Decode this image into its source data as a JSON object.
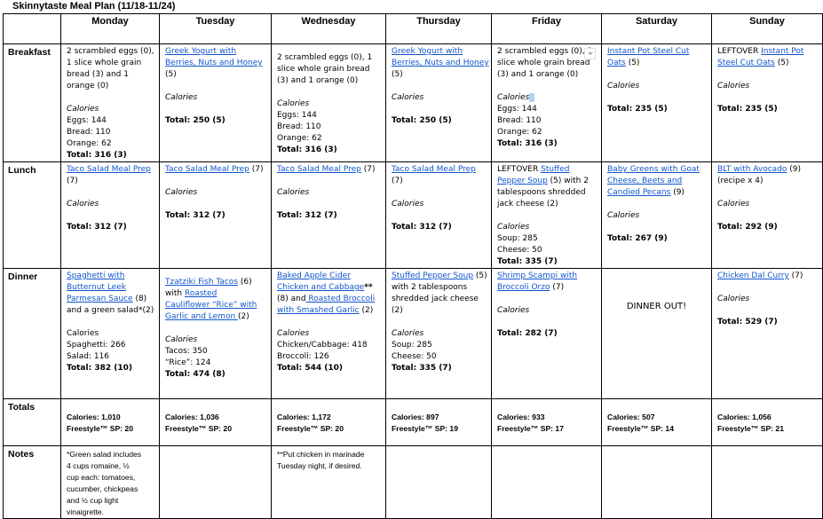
{
  "title": "Skinnytaste Meal Plan (11/18-11/24)",
  "days": [
    "Monday",
    "Tuesday",
    "Wednesday",
    "Thursday",
    "Friday",
    "Saturday",
    "Sunday"
  ],
  "colors": {
    "link": "#1155cc",
    "border": "#000000"
  },
  "rows": [
    {
      "label": "Breakfast",
      "cls": "bf",
      "cells": [
        {
          "lines": [
            [
              "2 scrambled eggs (0),"
            ],
            [
              "1 slice whole grain"
            ],
            [
              "bread (3) and 1"
            ],
            [
              "orange (0)"
            ],
            [],
            [
              {
                "t": "Calories",
                "s": "i"
              }
            ],
            [
              "Eggs: 144"
            ],
            [
              "Bread: 110"
            ],
            [
              "Orange: 62"
            ],
            [
              {
                "t": "Total: 316 (3)",
                "s": "b"
              }
            ]
          ]
        },
        {
          "lines": [
            [
              {
                "t": "Greek Yogurt with",
                "s": "lk"
              }
            ],
            [
              {
                "t": "Berries, Nuts and Honey",
                "s": "lk"
              }
            ],
            [
              "(5)"
            ],
            [],
            [
              {
                "t": "Calories",
                "s": "i"
              }
            ],
            [],
            [
              {
                "t": "Total: 250 (5)",
                "s": "b"
              }
            ]
          ]
        },
        {
          "off": true,
          "lines": [
            [
              "2 scrambled eggs (0), 1"
            ],
            [
              "slice whole grain bread"
            ],
            [
              "(3) and 1 orange (0)"
            ],
            [],
            [
              {
                "t": "Calories",
                "s": "i"
              }
            ],
            [
              "Eggs: 144"
            ],
            [
              "Bread: 110"
            ],
            [
              "Orange: 62"
            ],
            [
              {
                "t": "Total: 316 (3)",
                "s": "b"
              }
            ]
          ]
        },
        {
          "lines": [
            [
              {
                "t": "Greek Yogurt with",
                "s": "lk"
              }
            ],
            [
              {
                "t": "Berries, Nuts and Honey",
                "s": "lk"
              }
            ],
            [
              "(5)"
            ],
            [],
            [
              {
                "t": "Calories",
                "s": "i"
              }
            ],
            [],
            [
              {
                "t": "Total: 250 (5)",
                "s": "b"
              }
            ]
          ]
        },
        {
          "dropdown": true,
          "lines": [
            [
              "2 scrambled eggs (0), 1"
            ],
            [
              "slice whole grain bread"
            ],
            [
              "(3) and 1 orange (0)"
            ],
            [],
            [
              {
                "t": "Calories",
                "s": "i"
              }
            ],
            [
              "Eggs: 144"
            ],
            [
              "Bread: 110"
            ],
            [
              "Orange: 62"
            ],
            [
              {
                "t": "Total: 316 (3)",
                "s": "b"
              }
            ]
          ]
        },
        {
          "lines": [
            [
              {
                "t": "Instant Pot Steel Cut",
                "s": "lk"
              }
            ],
            [
              {
                "t": "Oats",
                "s": "lk"
              },
              " (5)"
            ],
            [],
            [
              {
                "t": "Calories",
                "s": "i"
              }
            ],
            [],
            [
              {
                "t": "Total: 235 (5)",
                "s": "b"
              }
            ]
          ]
        },
        {
          "lines": [
            [
              "LEFTOVER ",
              {
                "t": "Instant Pot",
                "s": "lk"
              }
            ],
            [
              {
                "t": "Steel Cut Oats",
                "s": "lk"
              },
              " (5)"
            ],
            [],
            [
              {
                "t": "Calories",
                "s": "i"
              }
            ],
            [],
            [
              {
                "t": "Total: 235 (5)",
                "s": "b"
              }
            ]
          ]
        }
      ]
    },
    {
      "label": "Lunch",
      "cls": "lu",
      "cells": [
        {
          "lines": [
            [
              {
                "t": "Taco Salad Meal Prep",
                "s": "lk"
              }
            ],
            [
              "(7)"
            ],
            [],
            [
              {
                "t": "Calories",
                "s": "i"
              }
            ],
            [],
            [
              {
                "t": "Total: 312 (7)",
                "s": "b"
              }
            ]
          ]
        },
        {
          "lines": [
            [
              {
                "t": "Taco Salad Meal Prep",
                "s": "lk"
              },
              " (7)"
            ],
            [],
            [
              {
                "t": "Calories",
                "s": "i"
              }
            ],
            [],
            [
              {
                "t": "Total: 312 (7)",
                "s": "b"
              }
            ]
          ]
        },
        {
          "lines": [
            [
              {
                "t": "Taco Salad Meal Prep",
                "s": "lk"
              },
              " (7)"
            ],
            [],
            [
              {
                "t": "Calories",
                "s": "i"
              }
            ],
            [],
            [
              {
                "t": "Total: 312 (7)",
                "s": "b"
              }
            ]
          ]
        },
        {
          "lines": [
            [
              {
                "t": "Taco Salad Meal Prep",
                "s": "lk"
              }
            ],
            [
              "(7)"
            ],
            [],
            [
              {
                "t": "Calories",
                "s": "i"
              }
            ],
            [],
            [
              {
                "t": "Total: 312 (7)",
                "s": "b"
              }
            ]
          ]
        },
        {
          "lines": [
            [
              "LEFTOVER ",
              {
                "t": "Stuffed",
                "s": "lk"
              }
            ],
            [
              {
                "t": "Pepper Soup",
                "s": "lk"
              },
              " (5) with 2"
            ],
            [
              "tablespoons shredded"
            ],
            [
              "jack cheese (2)"
            ],
            [],
            [
              {
                "t": "Calories",
                "s": "i"
              }
            ],
            [
              "Soup: 285"
            ],
            [
              "Cheese: 50"
            ],
            [
              {
                "t": "Total: 335 (7)",
                "s": "b"
              }
            ]
          ]
        },
        {
          "lines": [
            [
              {
                "t": "Baby Greens with Goat",
                "s": "lk"
              }
            ],
            [
              {
                "t": "Cheese, Beets and",
                "s": "lk"
              }
            ],
            [
              {
                "t": "Candied Pecans",
                "s": "lk"
              },
              " (9)"
            ],
            [],
            [
              {
                "t": "Calories",
                "s": "i"
              }
            ],
            [],
            [
              {
                "t": "Total: 267 (9)",
                "s": "b"
              }
            ]
          ]
        },
        {
          "lines": [
            [
              {
                "t": "BLT with Avocado",
                "s": "lk"
              },
              " (9)"
            ],
            [
              "(recipe x 4)"
            ],
            [],
            [
              {
                "t": "Calories",
                "s": "i"
              }
            ],
            [],
            [
              {
                "t": "Total: 292 (9)",
                "s": "b"
              }
            ]
          ]
        }
      ]
    },
    {
      "label": "Dinner",
      "cls": "di",
      "cells": [
        {
          "lines": [
            [
              {
                "t": "Spaghetti with",
                "s": "lk"
              }
            ],
            [
              {
                "t": "Butternut Leek",
                "s": "lk"
              }
            ],
            [
              {
                "t": "Parmesan Sauce",
                "s": "lk"
              },
              " (8)"
            ],
            [
              "and a green salad*(2)"
            ],
            [],
            [
              "Calories"
            ],
            [
              "Spaghetti: 266"
            ],
            [
              "Salad:  116"
            ],
            [
              {
                "t": "Total: 382 (10)",
                "s": "b"
              }
            ]
          ]
        },
        {
          "off": true,
          "lines": [
            [
              {
                "t": "Tzatziki Fish Tacos",
                "s": "lk"
              },
              " (6)"
            ],
            [
              "with ",
              {
                "t": "Roasted",
                "s": "lk"
              }
            ],
            [
              {
                "t": "Cauliflower “Rice” with",
                "s": "lk"
              }
            ],
            [
              {
                "t": "Garlic and Lemon ",
                "s": "lk"
              },
              "(2)"
            ],
            [],
            [
              {
                "t": "Calories",
                "s": "i"
              }
            ],
            [
              "Tacos: 350"
            ],
            [
              "“Rice”: 124"
            ],
            [
              {
                "t": "Total: 474 (8)",
                "s": "b"
              }
            ]
          ]
        },
        {
          "lines": [
            [
              {
                "t": "Baked Apple Cider",
                "s": "lk"
              }
            ],
            [
              {
                "t": "Chicken and Cabbage",
                "s": "lk"
              },
              {
                "t": "**",
                "s": "b"
              }
            ],
            [
              "(8) and",
              {
                "t": " Roasted Broccoli",
                "s": "lk"
              }
            ],
            [
              {
                "t": "with Smashed Garlic",
                "s": "lk"
              },
              " (2)"
            ],
            [],
            [
              {
                "t": "Calories",
                "s": "i"
              }
            ],
            [
              "Chicken/Cabbage: 418"
            ],
            [
              "Broccoli: 126"
            ],
            [
              {
                "t": "Total: 544 (10)",
                "s": "b"
              }
            ]
          ]
        },
        {
          "lines": [
            [
              {
                "t": "Stuffed Pepper Soup",
                "s": "lk"
              },
              " (5)"
            ],
            [
              "with 2 tablespoons"
            ],
            [
              "shredded jack cheese"
            ],
            [
              "(2)"
            ],
            [],
            [
              {
                "t": "Calories",
                "s": "i"
              }
            ],
            [
              "Soup: 285"
            ],
            [
              "Cheese: 50"
            ],
            [
              {
                "t": "Total: 335 (7)",
                "s": "b"
              }
            ]
          ]
        },
        {
          "lines": [
            [
              {
                "t": "Shrimp Scampi with",
                "s": "lk"
              }
            ],
            [
              {
                "t": "Broccoli Orzo",
                "s": "lk"
              },
              " (7)"
            ],
            [],
            [
              {
                "t": "Calories",
                "s": "i"
              }
            ],
            [],
            [
              {
                "t": "Total: 282 (7)",
                "s": "b"
              }
            ]
          ]
        },
        {
          "center": "DINNER OUT!"
        },
        {
          "lines": [
            [
              {
                "t": "Chicken Dal Curry",
                "s": "lk"
              },
              " (7)"
            ],
            [],
            [
              {
                "t": "Calories",
                "s": "i"
              }
            ],
            [],
            [
              {
                "t": "Total: 529 (7)",
                "s": "b"
              }
            ]
          ]
        }
      ]
    }
  ],
  "totals": {
    "label": "Totals",
    "cells": [
      {
        "calories": "Calories: 1,010",
        "sp": "Freestyle™ SP: 20"
      },
      {
        "calories": "Calories: 1,036",
        "sp": "Freestyle™ SP: 20"
      },
      {
        "calories": "Calories: 1,172",
        "sp": "Freestyle™ SP: 20"
      },
      {
        "calories": "Calories: 897",
        "sp": "Freestyle™ SP: 19"
      },
      {
        "calories": "Calories: 933",
        "sp": "Freestyle™ SP: 17"
      },
      {
        "calories": "Calories: 507",
        "sp": "Freestyle™ SP: 14"
      },
      {
        "calories": "Calories: 1,056",
        "sp": "Freestyle™ SP: 21"
      }
    ]
  },
  "notes": {
    "label": "Notes",
    "cells": [
      [
        "*Green salad includes",
        "4 cups romaine, ½",
        "cup each: tomatoes,",
        "cucumber, chickpeas",
        "and ½ cup light",
        "vinaigrette."
      ],
      [],
      [
        "**Put chicken in marinade",
        "Tuesday night, if desired."
      ],
      [],
      [],
      [],
      []
    ]
  }
}
